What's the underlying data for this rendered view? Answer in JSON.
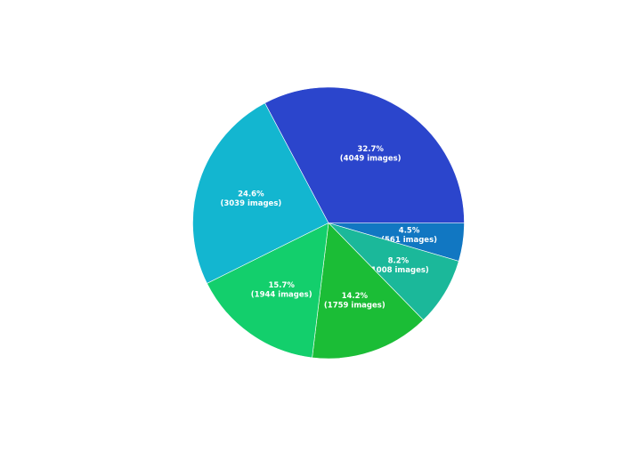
{
  "chart_data": {
    "type": "pie",
    "title": "",
    "start": "3 o'clock",
    "direction": "clockwise",
    "series": [
      {
        "values": [
          561,
          1008,
          1759,
          1944,
          3039,
          4049
        ],
        "percent_labels": [
          "4.5%",
          "8.2%",
          "14.2%",
          "15.7%",
          "24.6%",
          "32.7%"
        ],
        "count_labels": [
          "(561 images)",
          "(1008 images)",
          "(1759 images)",
          "(1944 images)",
          "(3039 images)",
          "(4049 images)"
        ],
        "colors": [
          "#1177c2",
          "#1bb89a",
          "#1bbd36",
          "#13cf6c",
          "#13b6d0",
          "#2b45cc"
        ]
      }
    ]
  }
}
